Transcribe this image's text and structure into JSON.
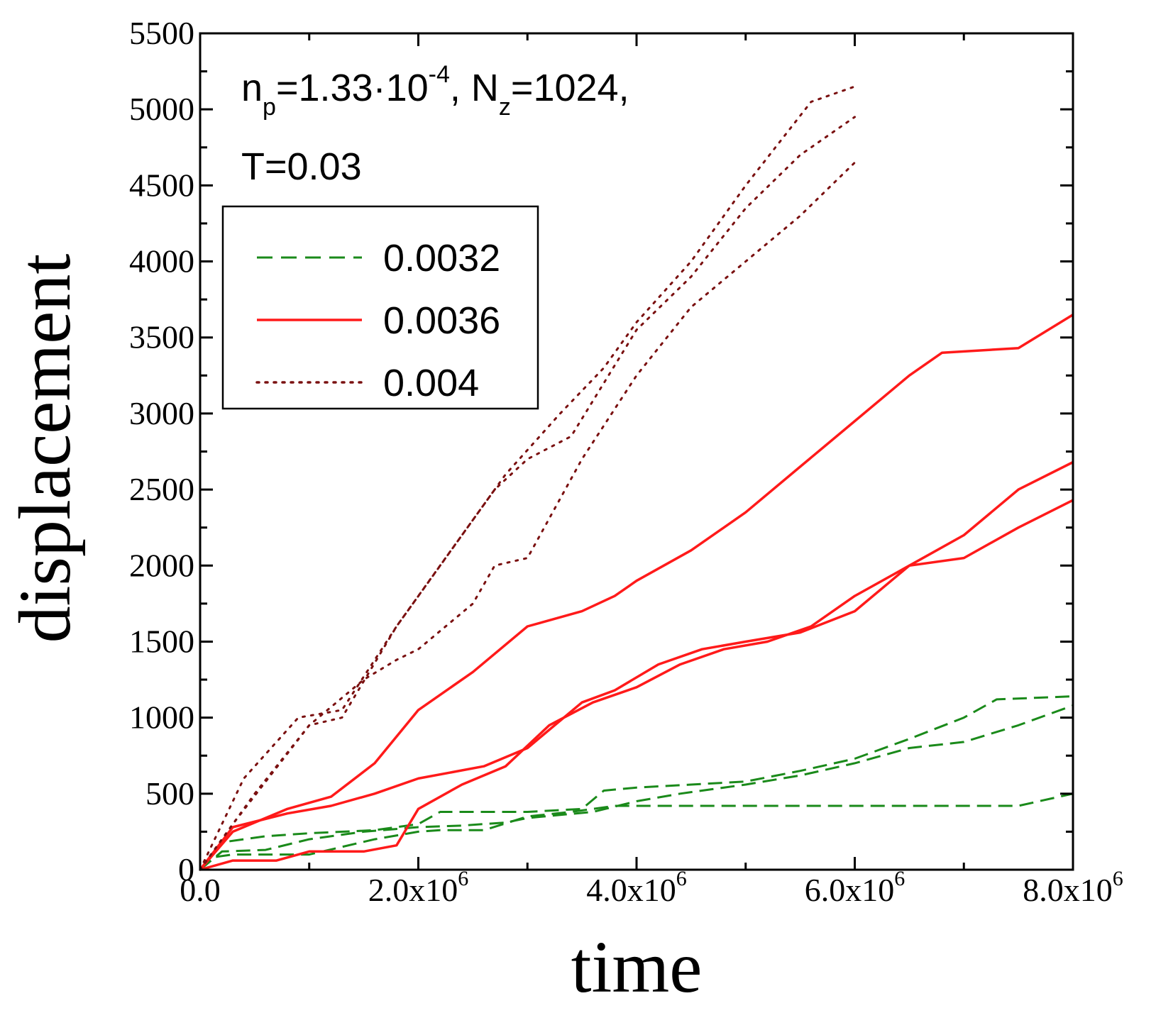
{
  "chart_data": {
    "type": "line",
    "title": "",
    "xlabel": "time",
    "ylabel": "displacement",
    "xlim": [
      0,
      8000000
    ],
    "ylim": [
      0,
      5500
    ],
    "x_ticks": [
      {
        "value": 0,
        "mantissa": "0.0",
        "exponent": ""
      },
      {
        "value": 2000000,
        "mantissa": "2.0x10",
        "exponent": "6"
      },
      {
        "value": 4000000,
        "mantissa": "4.0x10",
        "exponent": "6"
      },
      {
        "value": 6000000,
        "mantissa": "6.0x10",
        "exponent": "6"
      },
      {
        "value": 8000000,
        "mantissa": "8.0x10",
        "exponent": "6"
      }
    ],
    "y_ticks": [
      "0",
      "500",
      "1000",
      "1500",
      "2000",
      "2500",
      "3000",
      "3500",
      "4000",
      "4500",
      "5000",
      "5500"
    ],
    "annotation": {
      "line1": {
        "n": "n",
        "n_sub": "p",
        "eq1": "=1.33·10",
        "exp": "-4",
        "sep": ", N",
        "n_sub2": "z",
        "eq2": "=1024,"
      },
      "line2": "T=0.03"
    },
    "legend": {
      "position": "upper-left",
      "entries": [
        {
          "label": "0.0032",
          "color": "#1a8a1a",
          "style": "dashed"
        },
        {
          "label": "0.0036",
          "color": "#ff1a1a",
          "style": "solid"
        },
        {
          "label": "0.004",
          "color": "#7a1010",
          "style": "dotted"
        }
      ]
    },
    "series": [
      {
        "name": "0.0032",
        "run": 1,
        "color": "#1a8a1a",
        "style": "dashed",
        "x": [
          0,
          0.1,
          0.3,
          1.0,
          1.6,
          2.0,
          2.2,
          2.6,
          3.0,
          3.4,
          3.6,
          3.8,
          4.2,
          4.8,
          5.5,
          6.0,
          6.5,
          7.0,
          7.5,
          8.0
        ],
        "y": [
          0,
          80,
          100,
          100,
          200,
          250,
          260,
          260,
          350,
          380,
          400,
          420,
          420,
          420,
          420,
          420,
          420,
          420,
          420,
          500
        ]
      },
      {
        "name": "0.0032",
        "run": 2,
        "color": "#1a8a1a",
        "style": "dashed",
        "x": [
          0,
          0.2,
          0.6,
          1.0,
          1.5,
          2.0,
          2.4,
          2.8,
          3.0,
          3.6,
          4.0,
          4.4,
          5.0,
          5.5,
          6.0,
          6.5,
          7.0,
          7.5,
          8.0
        ],
        "y": [
          0,
          120,
          130,
          200,
          250,
          280,
          290,
          310,
          340,
          380,
          450,
          500,
          560,
          620,
          700,
          800,
          840,
          950,
          1080
        ]
      },
      {
        "name": "0.0032",
        "run": 3,
        "color": "#1a8a1a",
        "style": "dashed",
        "x": [
          0,
          0.2,
          0.6,
          1.0,
          1.6,
          2.0,
          2.2,
          2.6,
          3.0,
          3.5,
          3.7,
          4.0,
          4.5,
          5.0,
          5.5,
          6.0,
          6.5,
          7.0,
          7.3,
          8.0
        ],
        "y": [
          0,
          180,
          220,
          240,
          260,
          300,
          380,
          380,
          380,
          400,
          520,
          540,
          560,
          580,
          650,
          730,
          860,
          1000,
          1120,
          1140
        ]
      },
      {
        "name": "0.0036",
        "run": 1,
        "color": "#ff1a1a",
        "style": "solid",
        "x": [
          0,
          0.3,
          0.8,
          1.2,
          1.6,
          2.0,
          2.6,
          3.0,
          3.5,
          3.8,
          4.2,
          4.6,
          5.0,
          5.5,
          6.0,
          6.5,
          7.0,
          7.5,
          8.0
        ],
        "y": [
          0,
          280,
          370,
          420,
          500,
          600,
          680,
          800,
          1100,
          1180,
          1350,
          1450,
          1500,
          1560,
          1700,
          2000,
          2050,
          2250,
          2430
        ]
      },
      {
        "name": "0.0036",
        "run": 2,
        "color": "#ff1a1a",
        "style": "solid",
        "x": [
          0,
          0.3,
          0.7,
          1.0,
          1.5,
          1.8,
          2.0,
          2.4,
          2.8,
          3.2,
          3.6,
          4.0,
          4.4,
          4.8,
          5.2,
          5.6,
          6.0,
          6.5,
          7.0,
          7.5,
          8.0
        ],
        "y": [
          0,
          60,
          60,
          120,
          120,
          160,
          400,
          560,
          680,
          950,
          1100,
          1200,
          1350,
          1450,
          1500,
          1600,
          1800,
          2000,
          2200,
          2500,
          2680
        ]
      },
      {
        "name": "0.0036",
        "run": 3,
        "color": "#ff1a1a",
        "style": "solid",
        "x": [
          0,
          0.3,
          0.8,
          1.2,
          1.6,
          2.0,
          2.5,
          3.0,
          3.5,
          3.8,
          4.0,
          4.5,
          5.0,
          5.5,
          6.0,
          6.5,
          6.8,
          7.5,
          8.0
        ],
        "y": [
          0,
          250,
          400,
          480,
          700,
          1050,
          1300,
          1600,
          1700,
          1800,
          1900,
          2100,
          2350,
          2650,
          2950,
          3250,
          3400,
          3430,
          3650
        ]
      },
      {
        "name": "0.004",
        "run": 1,
        "color": "#7a1010",
        "style": "dotted",
        "x": [
          0,
          0.5,
          1.0,
          1.5,
          1.8,
          2.0,
          2.5,
          2.7,
          3.0,
          3.5,
          4.0,
          4.5,
          5.0,
          5.5,
          6.0
        ],
        "y": [
          0,
          500,
          950,
          1250,
          1380,
          1450,
          1750,
          2000,
          2050,
          2700,
          3250,
          3700,
          4000,
          4300,
          4650
        ]
      },
      {
        "name": "0.004",
        "run": 2,
        "color": "#7a1010",
        "style": "dotted",
        "x": [
          0,
          0.3,
          1.0,
          1.3,
          1.8,
          2.2,
          2.7,
          3.0,
          3.4,
          4.0,
          4.5,
          5.0,
          5.5,
          6.0
        ],
        "y": [
          0,
          300,
          950,
          1000,
          1600,
          2000,
          2500,
          2700,
          2850,
          3550,
          3900,
          4350,
          4700,
          4950
        ]
      },
      {
        "name": "0.004",
        "run": 3,
        "color": "#7a1010",
        "style": "dotted",
        "x": [
          0,
          0.4,
          0.9,
          1.3,
          1.8,
          2.3,
          2.8,
          3.3,
          3.7,
          4.0,
          4.5,
          5.0,
          5.6,
          6.0
        ],
        "y": [
          0,
          600,
          1000,
          1050,
          1600,
          2100,
          2600,
          3000,
          3300,
          3600,
          4000,
          4500,
          5050,
          5150
        ]
      }
    ]
  }
}
